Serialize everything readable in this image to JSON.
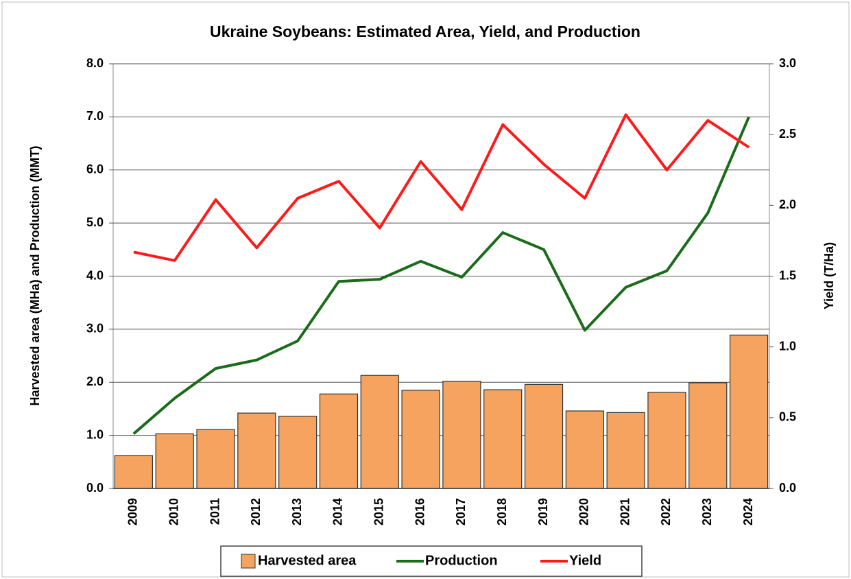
{
  "chart_data": {
    "type": "bar",
    "title": "Ukraine Soybeans: Estimated Area, Yield, and Production",
    "ylabel": "Harvested area (MHa) and Production (MMT)",
    "y2label": "Yield (T/Ha)",
    "categories": [
      "2009",
      "2010",
      "2011",
      "2012",
      "2013",
      "2014",
      "2015",
      "2016",
      "2017",
      "2018",
      "2019",
      "2020",
      "2021",
      "2022",
      "2023",
      "2024"
    ],
    "series": [
      {
        "name": "Harvested area",
        "type": "bar",
        "color": "#f5a35e",
        "axis": "y",
        "values": [
          0.62,
          1.03,
          1.11,
          1.42,
          1.36,
          1.78,
          2.13,
          1.85,
          2.02,
          1.86,
          1.96,
          1.46,
          1.43,
          1.81,
          1.99,
          2.89
        ]
      },
      {
        "name": "Production",
        "type": "line",
        "color": "#1a6b1a",
        "axis": "y",
        "values": [
          1.03,
          1.7,
          2.26,
          2.42,
          2.78,
          3.9,
          3.94,
          4.28,
          3.98,
          4.82,
          4.5,
          2.98,
          3.79,
          4.1,
          5.19,
          7.0
        ]
      },
      {
        "name": "Yield",
        "type": "line",
        "color": "#ff1a1a",
        "axis": "y2",
        "values": [
          1.67,
          1.61,
          2.04,
          1.7,
          2.05,
          2.17,
          1.84,
          2.31,
          1.97,
          2.57,
          2.29,
          2.05,
          2.64,
          2.25,
          2.6,
          2.41
        ]
      }
    ],
    "ylim": [
      0,
      8
    ],
    "yticks": [
      {
        "value": 0,
        "label": "0.0"
      },
      {
        "value": 1,
        "label": "1.0"
      },
      {
        "value": 2,
        "label": "2.0"
      },
      {
        "value": 3,
        "label": "3.0"
      },
      {
        "value": 4,
        "label": "4.0"
      },
      {
        "value": 5,
        "label": "5.0"
      },
      {
        "value": 6,
        "label": "6.0"
      },
      {
        "value": 7,
        "label": "7.0"
      },
      {
        "value": 8,
        "label": "8.0"
      }
    ],
    "y2lim": [
      0,
      3
    ],
    "y2ticks": [
      {
        "value": 0,
        "label": "0.0"
      },
      {
        "value": 0.5,
        "label": "0.5"
      },
      {
        "value": 1,
        "label": "1.0"
      },
      {
        "value": 1.5,
        "label": "1.5"
      },
      {
        "value": 2,
        "label": "2.0"
      },
      {
        "value": 2.5,
        "label": "2.5"
      },
      {
        "value": 3,
        "label": "3.0"
      }
    ],
    "grid": true,
    "legend": "bottom"
  }
}
